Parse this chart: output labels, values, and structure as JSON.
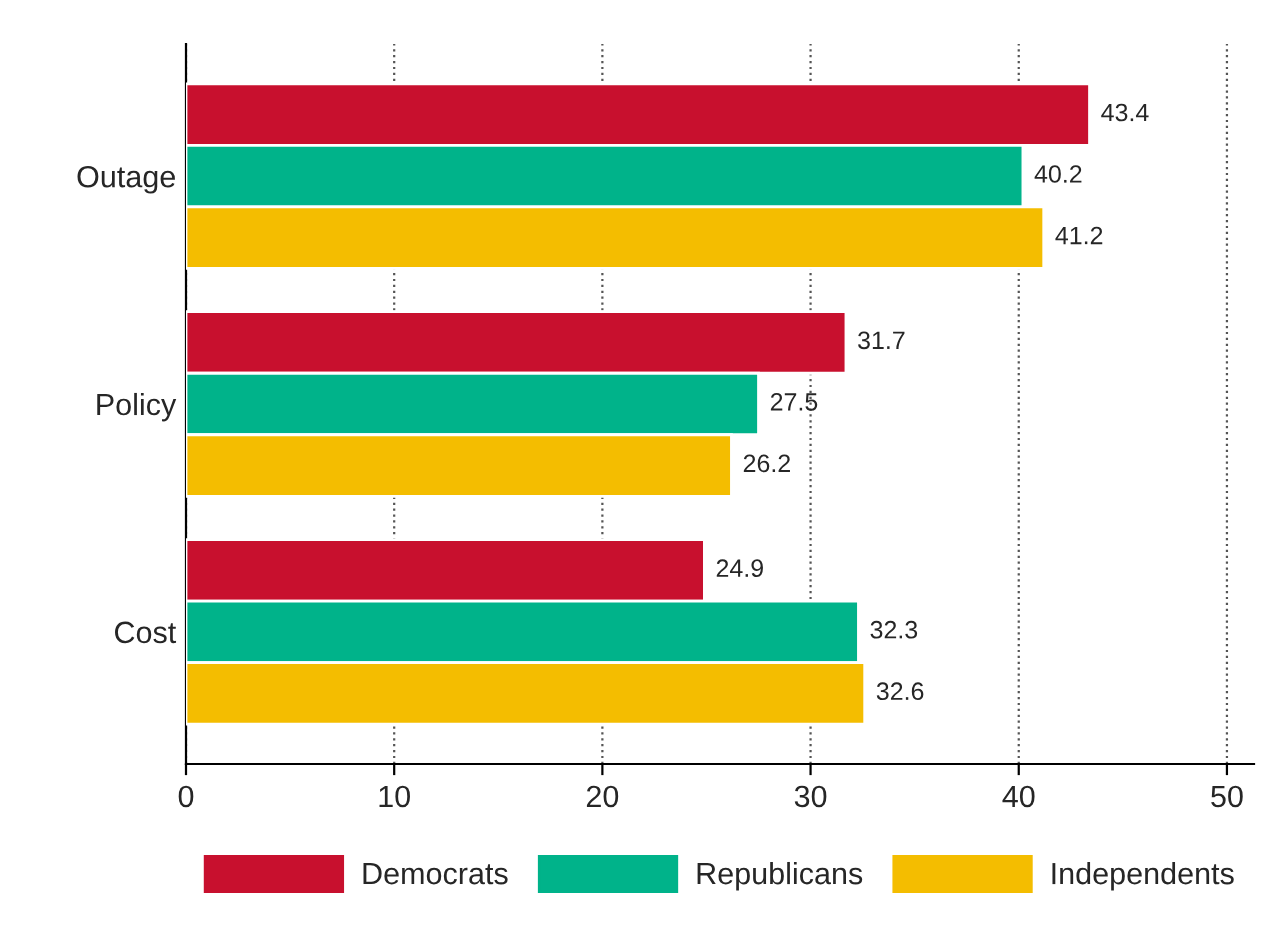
{
  "chart_data": {
    "type": "bar",
    "orientation": "horizontal",
    "categories": [
      "Outage",
      "Policy",
      "Cost"
    ],
    "series": [
      {
        "name": "Democrats",
        "color": "#c8102e",
        "values": [
          43.4,
          31.7,
          24.9
        ]
      },
      {
        "name": "Republicans",
        "color": "#00b38a",
        "values": [
          40.2,
          27.5,
          32.3
        ]
      },
      {
        "name": "Independents",
        "color": "#f4bd00",
        "values": [
          41.2,
          26.2,
          32.6
        ]
      }
    ],
    "xlim": [
      0,
      51.3
    ],
    "xticks": [
      0,
      10,
      20,
      30,
      40,
      50
    ],
    "grid": "x",
    "legend": "bottom",
    "data_labels": true
  }
}
